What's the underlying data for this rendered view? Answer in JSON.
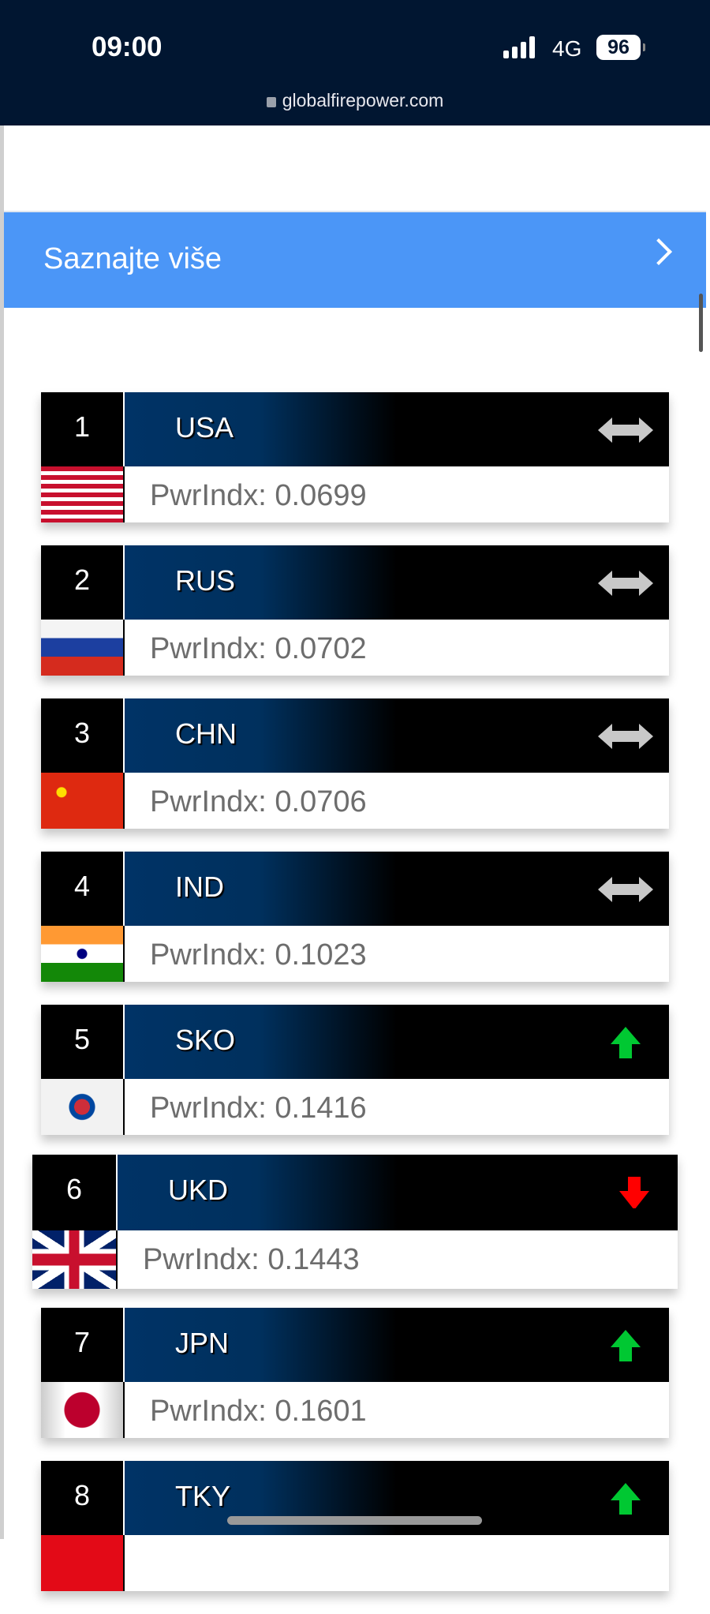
{
  "status_bar": {
    "time": "09:00",
    "network": "4G",
    "battery": "96",
    "url": "globalfirepower.com"
  },
  "banner": {
    "label": "Saznajte više"
  },
  "colors": {
    "header_bg": "#011631",
    "banner": "#4b96f7",
    "up": "#00c832",
    "down": "#ff0000",
    "same": "#c8c8c8"
  },
  "rankings": [
    {
      "rank": "1",
      "code": "USA",
      "pwr": "PwrIndx: 0.0699",
      "trend": "same",
      "flag": "usa"
    },
    {
      "rank": "2",
      "code": "RUS",
      "pwr": "PwrIndx: 0.0702",
      "trend": "same",
      "flag": "rus"
    },
    {
      "rank": "3",
      "code": "CHN",
      "pwr": "PwrIndx: 0.0706",
      "trend": "same",
      "flag": "chn"
    },
    {
      "rank": "4",
      "code": "IND",
      "pwr": "PwrIndx: 0.1023",
      "trend": "same",
      "flag": "ind"
    },
    {
      "rank": "5",
      "code": "SKO",
      "pwr": "PwrIndx: 0.1416",
      "trend": "up",
      "flag": "sko"
    },
    {
      "rank": "6",
      "code": "UKD",
      "pwr": "PwrIndx: 0.1443",
      "trend": "down",
      "flag": "ukd"
    },
    {
      "rank": "7",
      "code": "JPN",
      "pwr": "PwrIndx: 0.1601",
      "trend": "up",
      "flag": "jpn"
    },
    {
      "rank": "8",
      "code": "TKY",
      "pwr": "",
      "trend": "up",
      "flag": "tky"
    }
  ]
}
